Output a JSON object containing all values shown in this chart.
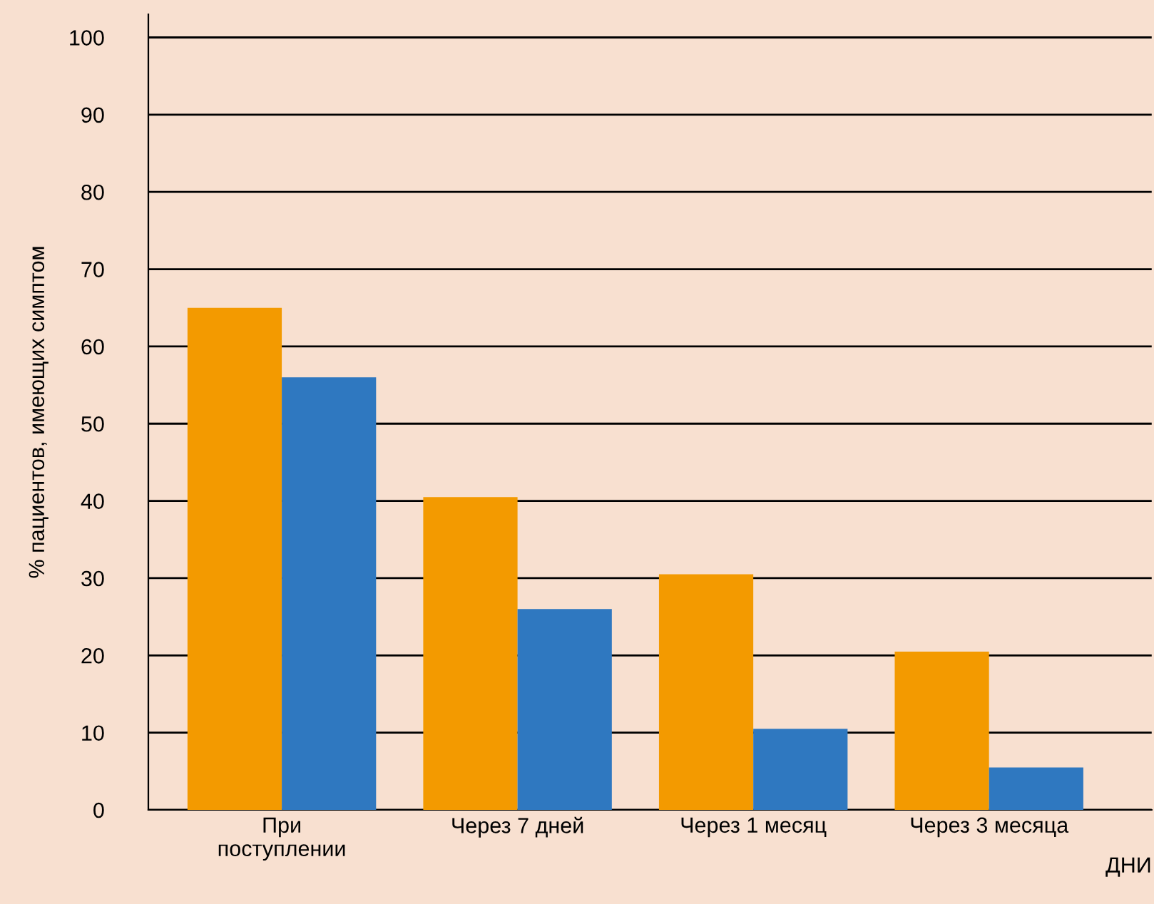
{
  "chart_data": {
    "type": "bar",
    "ylabel": "% пациентов, имеющих симптом",
    "xlabel": "ДНИ",
    "categories": [
      "При\nпоступлении",
      "Через 7 дней",
      "Через 1 месяц",
      "Через 3 месяца"
    ],
    "series": [
      {
        "color": "#f39a00",
        "values": [
          65,
          40.5,
          30.5,
          20.5
        ]
      },
      {
        "color": "#2f78c0",
        "values": [
          56,
          26,
          10.5,
          5.5
        ]
      }
    ],
    "ylim": [
      0,
      103
    ],
    "yticks": [
      0,
      10,
      20,
      30,
      40,
      50,
      60,
      70,
      80,
      90,
      100
    ],
    "grid": "y",
    "legend": false
  }
}
